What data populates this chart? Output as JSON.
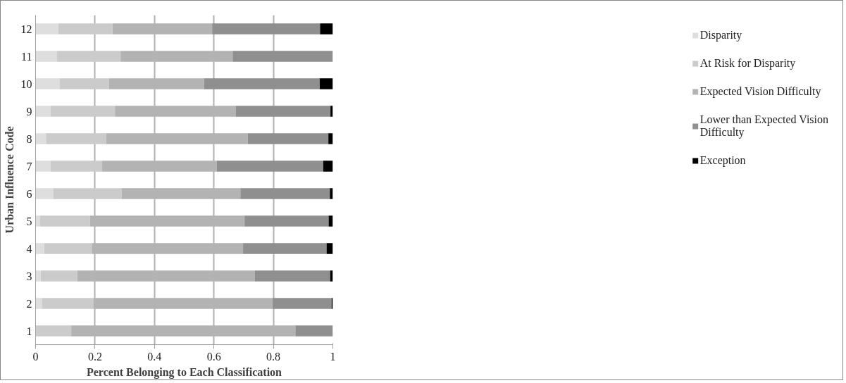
{
  "chart_data": {
    "type": "bar",
    "orientation": "horizontal",
    "stacked": true,
    "xlabel": "Percent Belonging to Each Classification",
    "ylabel": "Urban Influence Code",
    "categories": [
      "12",
      "11",
      "10",
      "9",
      "8",
      "7",
      "6",
      "5",
      "4",
      "3",
      "2",
      "1"
    ],
    "series": [
      {
        "name": "Disparity",
        "color": "#dedede",
        "values": [
          0.077,
          0.071,
          0.081,
          0.05,
          0.035,
          0.051,
          0.059,
          0.014,
          0.029,
          0.017,
          0.021,
          0
        ]
      },
      {
        "name": "At Risk for Disparity",
        "color": "#cbcbcb",
        "values": [
          0.182,
          0.215,
          0.166,
          0.217,
          0.203,
          0.173,
          0.23,
          0.169,
          0.16,
          0.124,
          0.173,
          0.12
        ]
      },
      {
        "name": "Expected Vision Difficulty",
        "color": "#b3b3b3",
        "values": [
          0.335,
          0.377,
          0.32,
          0.407,
          0.476,
          0.385,
          0.4,
          0.52,
          0.509,
          0.596,
          0.603,
          0.754
        ]
      },
      {
        "name": "Lower than Expected Vision Difficulty",
        "color": "#8f8f8f",
        "values": [
          0.363,
          0.337,
          0.389,
          0.318,
          0.271,
          0.359,
          0.301,
          0.283,
          0.281,
          0.254,
          0.199,
          0.126
        ]
      },
      {
        "name": "Exception",
        "color": "#000000",
        "values": [
          0.043,
          0,
          0.044,
          0.008,
          0.015,
          0.032,
          0.01,
          0.014,
          0.021,
          0.009,
          0.004,
          0
        ]
      }
    ],
    "xlim": [
      0,
      1
    ],
    "xticks": [
      0,
      0.2,
      0.4,
      0.6,
      0.8,
      1
    ],
    "grid": "x",
    "legend": "right"
  }
}
